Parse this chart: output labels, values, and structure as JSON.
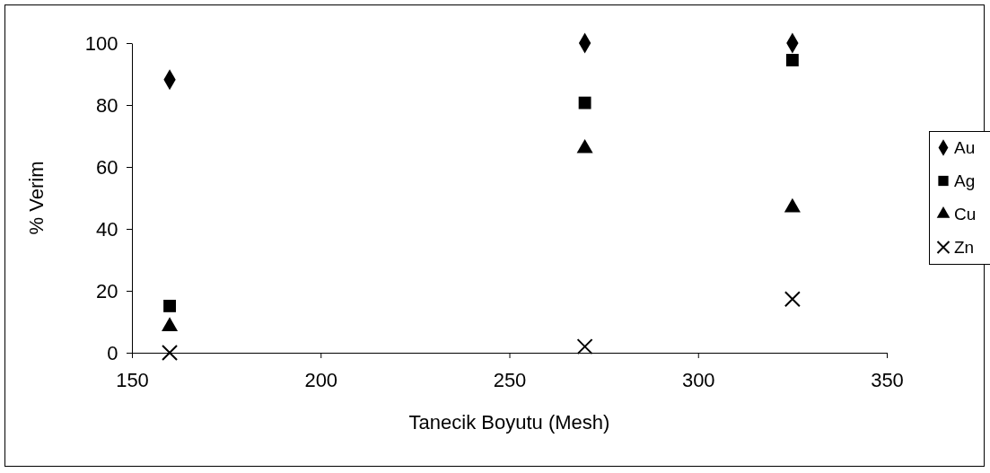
{
  "chart_data": {
    "type": "scatter",
    "xlabel": "Tanecik Boyutu (Mesh)",
    "ylabel": "% Verim",
    "x": [
      160,
      270,
      325
    ],
    "series": [
      {
        "name": "Au",
        "color": "#000000",
        "marker": "diamond",
        "values": [
          88.2,
          100,
          100
        ]
      },
      {
        "name": "Ag",
        "color": "#000000",
        "marker": "square",
        "values": [
          15.1,
          80.7,
          94.5
        ]
      },
      {
        "name": "Cu",
        "color": "#000000",
        "marker": "triangle",
        "values": [
          8.5,
          66,
          46.9
        ]
      },
      {
        "name": "Zn",
        "color": "#000000",
        "marker": "cross",
        "values": [
          0,
          2,
          17.3
        ]
      }
    ],
    "xlim": [
      150,
      350
    ],
    "xticks": [
      150,
      200,
      250,
      300,
      350
    ],
    "ylim": [
      0,
      100
    ],
    "yticks": [
      0,
      20,
      40,
      60,
      80,
      100
    ],
    "grid": false,
    "legend": "right"
  }
}
